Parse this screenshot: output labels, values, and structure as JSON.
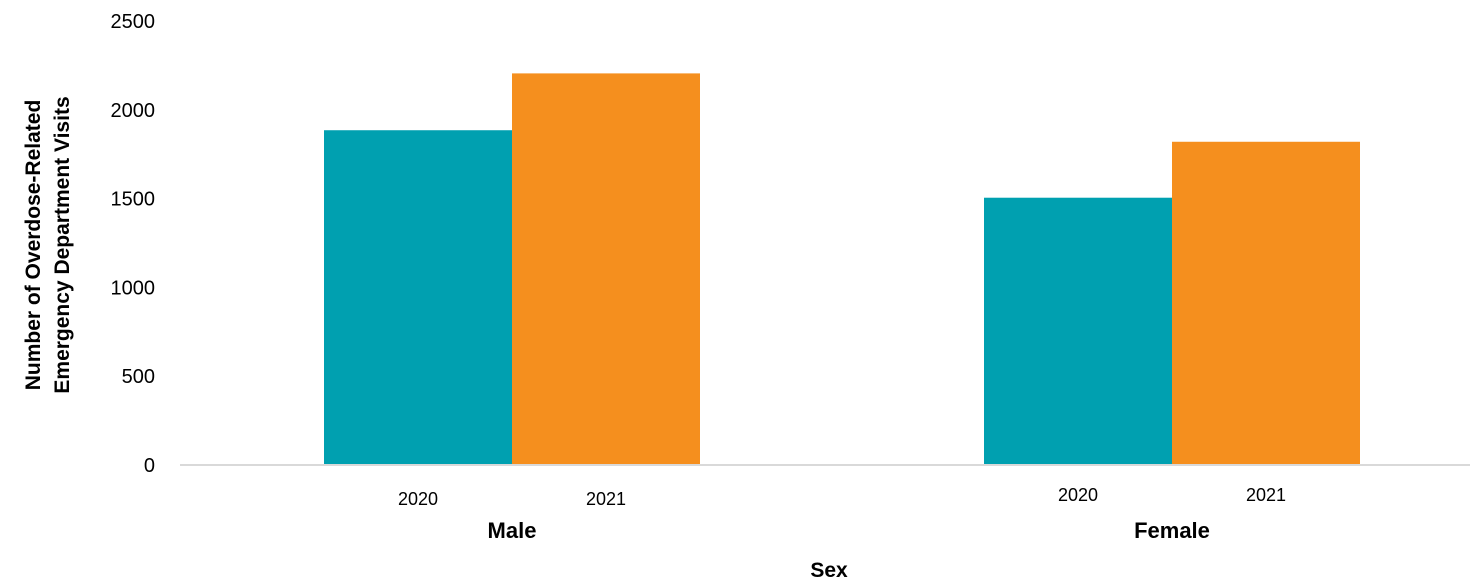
{
  "chart_data": {
    "type": "bar",
    "categories": [
      "Male",
      "Female"
    ],
    "series": [
      {
        "name": "2020",
        "color": "#00A0B0",
        "values": [
          1885,
          1505
        ]
      },
      {
        "name": "2021",
        "color": "#F58F1E",
        "values": [
          2205,
          1820
        ]
      }
    ],
    "sub_labels": [
      "2020",
      "2021"
    ],
    "xlabel": "Sex",
    "ylabel_lines": [
      "Number of Overdose-Related",
      "Emergency Department Visits"
    ],
    "ylim": [
      0,
      2500
    ],
    "yticks": [
      0,
      500,
      1000,
      1500,
      2000,
      2500
    ],
    "grid": false,
    "legend": "none"
  }
}
